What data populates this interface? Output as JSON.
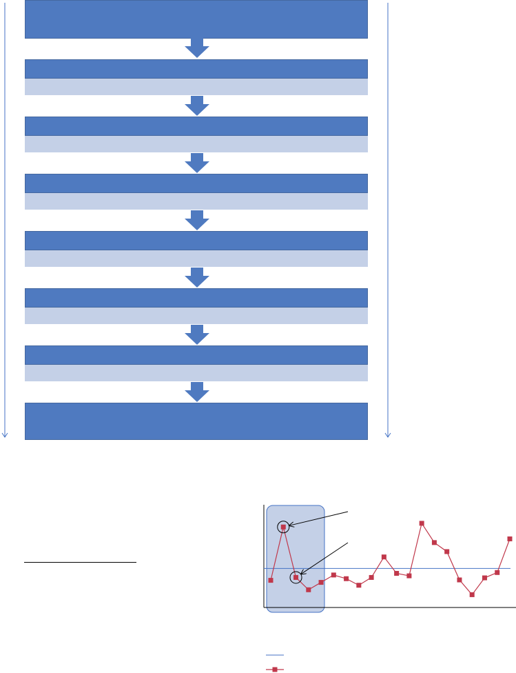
{
  "flowchart": {
    "box_color": "#4F7AC0",
    "sub_color": "#C4D0E7",
    "arrow_color": "#4F7AC0",
    "steps": [
      {
        "label": "",
        "detail": null
      },
      {
        "label": "",
        "detail": ""
      },
      {
        "label": "",
        "detail": ""
      },
      {
        "label": "",
        "detail": ""
      },
      {
        "label": "",
        "detail": ""
      },
      {
        "label": "",
        "detail": ""
      },
      {
        "label": "",
        "detail": ""
      },
      {
        "label": "",
        "detail": null
      }
    ]
  },
  "chart_data": {
    "type": "line",
    "title": "",
    "xlabel": "",
    "ylabel": "",
    "grid": false,
    "ylim": [
      0,
      100
    ],
    "x": [
      1,
      2,
      3,
      4,
      5,
      6,
      7,
      8,
      9,
      10,
      11,
      12,
      13,
      14,
      15,
      16,
      17,
      18,
      19,
      20
    ],
    "series": [
      {
        "color": "#4472C4",
        "kind": "reference-line",
        "values": [
          35,
          35,
          35,
          35,
          35,
          35,
          35,
          35,
          35,
          35,
          35,
          35,
          35,
          35,
          35,
          35,
          35,
          35,
          35,
          35
        ]
      },
      {
        "color": "#C0384B",
        "marker": "square",
        "values": [
          20.5,
          85.5,
          24,
          9,
          18,
          27,
          22.5,
          14.5,
          24,
          49,
          29,
          26,
          90,
          66.5,
          55.5,
          21,
          3,
          23.5,
          30,
          71
        ]
      }
    ],
    "highlight_region": {
      "from_x": 1,
      "to_x": 4,
      "color": "#C4D0E7"
    },
    "circled_points": [
      2,
      3
    ],
    "annotations": [
      "",
      ""
    ],
    "legend_position": "bottom-left"
  }
}
